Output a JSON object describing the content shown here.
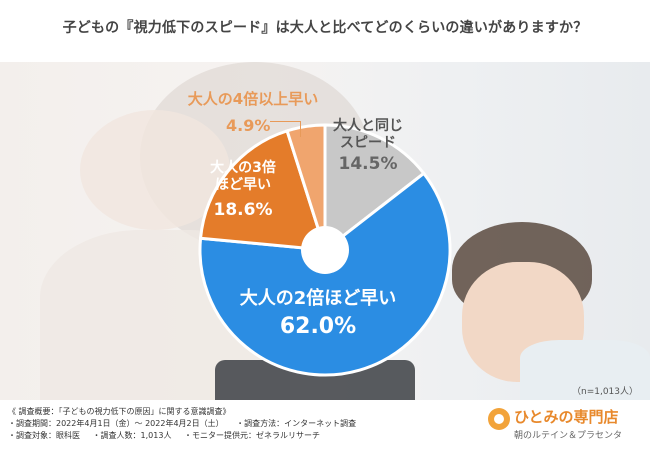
{
  "title": "子どもの『視力低下のスピード』は大人と比べてどのくらいの違いがありますか？",
  "chart_data": {
    "type": "pie",
    "start_angle_deg": 0,
    "direction": "clockwise",
    "slices": [
      {
        "name": "大人と同じスピード",
        "value": 14.5,
        "color": "#c8c8c8"
      },
      {
        "name": "大人の2倍ほど早い",
        "value": 62.0,
        "color": "#2b8de3"
      },
      {
        "name": "大人の3倍ほど早い",
        "value": 18.6,
        "color": "#e47c2a"
      },
      {
        "name": "大人の4倍以上早い",
        "value": 4.9,
        "color": "#f0a56e"
      }
    ],
    "labels": {
      "same": {
        "line1": "大人と同じ",
        "line2": "スピード",
        "pct": "14.5%"
      },
      "x2": {
        "name": "大人の2倍ほど早い",
        "pct": "62.0%"
      },
      "x3": {
        "line1": "大人の3倍",
        "line2": "ほど早い",
        "pct": "18.6%"
      },
      "x4": {
        "name": "大人の4倍以上早い",
        "pct": "4.9%"
      }
    },
    "sample_size": "（n=1,013人）"
  },
  "footer": {
    "overview": "《 調査概要：「子どもの視力低下の原因」に関する意識調査》",
    "period": "・調査期間：2022年4月1日（金）～ 2022年4月2日（土）",
    "method": "・調査方法：インターネット調査",
    "target": "・調査対象：眼科医",
    "count": "・調査人数：1,013人",
    "provider": "・モニター提供元：ゼネラルリサーチ"
  },
  "logo": {
    "name": "ひとみの専門店",
    "sub": "朝のルテイン＆プラセンタ"
  }
}
